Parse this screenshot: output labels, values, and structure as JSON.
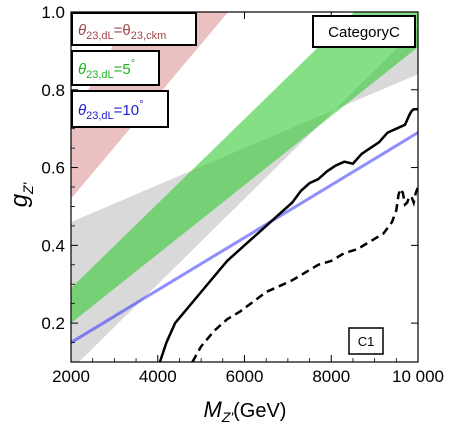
{
  "chart_data": {
    "type": "area",
    "x_range": [
      2000,
      10000
    ],
    "y_range": [
      0.1,
      1.0
    ],
    "x_ticks": [
      "2000",
      "4000",
      "6000",
      "8000",
      "10 000"
    ],
    "x_tick_values": [
      2000,
      4000,
      6000,
      8000,
      10000
    ],
    "y_ticks": [
      "0.2",
      "0.4",
      "0.6",
      "0.8",
      "1.0"
    ],
    "y_tick_values": [
      0.2,
      0.4,
      0.6,
      0.8,
      1.0
    ],
    "xlabel": {
      "main": "M",
      "sub": "Z'",
      "unit": "(GeV)"
    },
    "ylabel": {
      "main": "g",
      "sub": "Z'"
    },
    "category_label": "CategoryC",
    "region_label": "C1",
    "colors": {
      "allowed_band": "#d9d9d9",
      "ckm_band": "#d98c8c",
      "five_deg_band": "#33cc33",
      "ten_deg_line": "#3333ff",
      "ckm_text": "#a04646",
      "five_deg_text": "#22b122",
      "ten_deg_text": "#2020d0"
    },
    "series": [
      {
        "name": "θ23,dL=θ23,ckm",
        "legend": {
          "prefix": "θ",
          "sub1": "23,dL",
          "mid": "=θ",
          "sub2": "23,ckm"
        },
        "lower": {
          "x": [
            2000,
            10000
          ],
          "y": [
            0.52,
            1.58
          ]
        },
        "upper": {
          "x": [
            2000,
            10000
          ],
          "y": [
            0.72,
            2.32
          ]
        }
      },
      {
        "name": "θ23,dL=5°",
        "legend": {
          "prefix": "θ",
          "sub1": "23,dL",
          "mid": "=5",
          "sup": "°"
        },
        "lower": {
          "x": [
            2000,
            10000
          ],
          "y": [
            0.2,
            0.91
          ]
        },
        "upper": {
          "x": [
            2000,
            10000
          ],
          "y": [
            0.29,
            1.16
          ]
        }
      },
      {
        "name": "θ23,dL=10°",
        "legend": {
          "prefix": "θ",
          "sub1": "23,dL",
          "mid": "=10",
          "sup": "°"
        },
        "line": {
          "x": [
            2000,
            10000
          ],
          "y": [
            0.15,
            0.69
          ]
        }
      }
    ],
    "allowed_region": {
      "lower": {
        "x": [
          2000,
          10000
        ],
        "y": [
          0.08,
          0.96
        ]
      },
      "upper": {
        "x": [
          2000,
          10000
        ],
        "y": [
          0.46,
          0.84
        ]
      }
    },
    "solid_bound": {
      "x": [
        4050,
        4200,
        4400,
        4700,
        5000,
        5300,
        5600,
        6000,
        6400,
        6800,
        7100,
        7300,
        7500,
        7700,
        7900,
        8100,
        8300,
        8500,
        8700,
        8900,
        9100,
        9300,
        9500,
        9700,
        9800,
        9850,
        9900,
        9950,
        10000
      ],
      "y": [
        0.1,
        0.15,
        0.2,
        0.24,
        0.28,
        0.32,
        0.36,
        0.4,
        0.44,
        0.48,
        0.51,
        0.54,
        0.56,
        0.57,
        0.59,
        0.605,
        0.615,
        0.61,
        0.635,
        0.65,
        0.665,
        0.69,
        0.7,
        0.71,
        0.735,
        0.745,
        0.75,
        0.75,
        0.75
      ]
    },
    "dashed_bound": {
      "x": [
        4800,
        5000,
        5300,
        5600,
        5900,
        6200,
        6500,
        6800,
        7100,
        7400,
        7700,
        8000,
        8300,
        8600,
        8900,
        9200,
        9400,
        9500,
        9550,
        9600,
        9650,
        9700,
        9750,
        9800,
        9850,
        9900,
        9950,
        10000
      ],
      "y": [
        0.1,
        0.14,
        0.18,
        0.21,
        0.23,
        0.255,
        0.28,
        0.295,
        0.31,
        0.33,
        0.35,
        0.36,
        0.38,
        0.39,
        0.41,
        0.43,
        0.46,
        0.49,
        0.53,
        0.545,
        0.535,
        0.505,
        0.51,
        0.525,
        0.525,
        0.51,
        0.535,
        0.55
      ]
    }
  }
}
